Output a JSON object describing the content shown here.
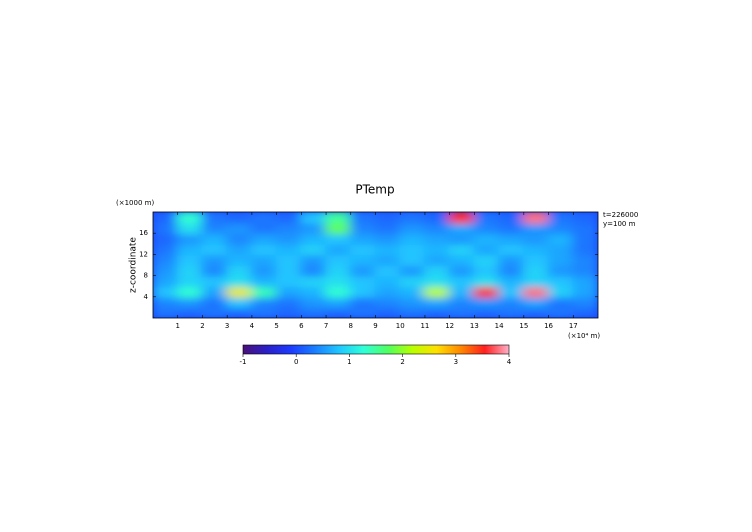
{
  "chart_data": {
    "type": "heatmap",
    "title": "PTemp",
    "y_label": "z-coordinate",
    "y_unit": "(×1000 m)",
    "x_unit": "(×10⁴ m)",
    "annotations": [
      "t=226000",
      "y=100 m"
    ],
    "xlim": [
      0,
      18
    ],
    "ylim": [
      0,
      20
    ],
    "xticks": [
      1,
      2,
      3,
      4,
      5,
      6,
      7,
      8,
      9,
      10,
      11,
      12,
      13,
      14,
      15,
      16,
      17
    ],
    "yticks": [
      4,
      8,
      12,
      16
    ],
    "clim": [
      -1,
      4
    ],
    "cticks": [
      -1,
      0,
      1,
      2,
      3,
      4
    ],
    "colors": [
      "#4a1078",
      "#2a20c8",
      "#1c3cff",
      "#1a80ff",
      "#20c8ff",
      "#30ffd8",
      "#50ff60",
      "#b8ff00",
      "#ffe000",
      "#ff8800",
      "#ff2020",
      "#ffb0c8"
    ],
    "z": [
      [
        0.3,
        0.2,
        0.3,
        0.2,
        0.3,
        0.2,
        0.3,
        0.2,
        0.3,
        0.2,
        0.3,
        0.2,
        0.3,
        0.2,
        0.3,
        0.2,
        0.3,
        0.2
      ],
      [
        0.4,
        0.5,
        0.3,
        0.8,
        0.4,
        0.3,
        0.5,
        0.6,
        0.3,
        0.4,
        0.5,
        0.6,
        0.4,
        0.5,
        0.4,
        0.6,
        0.3,
        0.4
      ],
      [
        0.8,
        1.3,
        0.6,
        2.5,
        1.4,
        0.6,
        0.7,
        1.3,
        0.8,
        0.6,
        0.7,
        2.2,
        0.7,
        3.5,
        0.8,
        3.8,
        0.9,
        0.6
      ],
      [
        0.6,
        0.9,
        0.8,
        1.0,
        0.7,
        0.8,
        0.9,
        1.0,
        0.8,
        0.7,
        0.9,
        1.0,
        0.8,
        1.0,
        0.7,
        0.9,
        0.8,
        0.6
      ],
      [
        0.5,
        0.9,
        0.4,
        0.9,
        0.5,
        0.8,
        0.4,
        0.9,
        0.5,
        0.8,
        0.5,
        0.9,
        0.5,
        0.8,
        0.4,
        0.9,
        0.5,
        0.4
      ],
      [
        0.4,
        0.8,
        0.5,
        0.7,
        0.6,
        0.8,
        0.5,
        0.8,
        0.7,
        0.6,
        0.8,
        0.6,
        0.7,
        0.9,
        0.5,
        0.8,
        0.6,
        0.4
      ],
      [
        0.3,
        0.7,
        0.8,
        0.6,
        0.8,
        0.7,
        0.9,
        0.6,
        0.8,
        0.7,
        0.8,
        0.7,
        0.9,
        0.6,
        0.8,
        0.7,
        0.6,
        0.3
      ],
      [
        0.2,
        0.5,
        0.7,
        0.4,
        0.6,
        0.5,
        0.7,
        0.8,
        0.6,
        0.5,
        0.7,
        0.6,
        0.5,
        0.7,
        0.6,
        0.5,
        0.7,
        0.3
      ],
      [
        0.3,
        1.0,
        0.4,
        0.5,
        0.3,
        0.4,
        0.5,
        1.8,
        0.4,
        0.3,
        0.5,
        0.4,
        0.6,
        0.4,
        0.3,
        0.5,
        0.4,
        0.3
      ],
      [
        0.2,
        1.3,
        0.3,
        0.2,
        0.3,
        0.2,
        0.8,
        1.5,
        0.3,
        0.2,
        0.3,
        0.2,
        3.5,
        0.3,
        0.2,
        3.8,
        0.3,
        0.2
      ]
    ]
  }
}
